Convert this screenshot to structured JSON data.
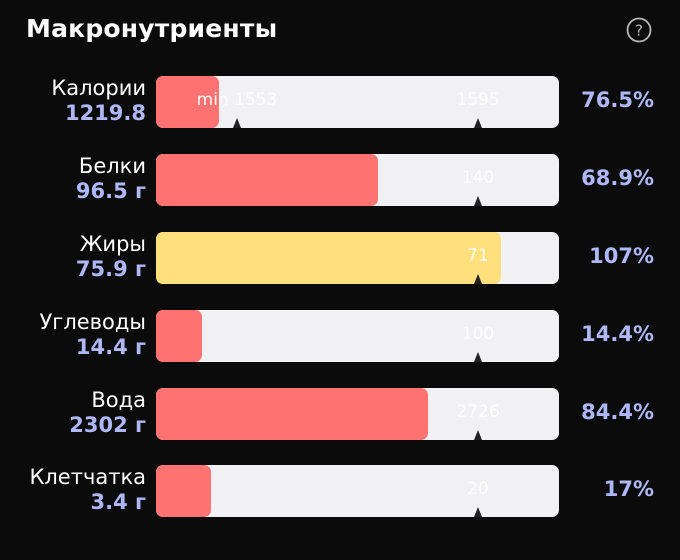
{
  "header": {
    "title": "Макронутриенты",
    "help_icon": "question-circle-icon",
    "help_glyph": "?"
  },
  "colors": {
    "background": "#0b0b0b",
    "track": "#f1f1f3",
    "fill_red": "#ff7272",
    "fill_yellow": "#ffe07c",
    "value_text": "#aeb8f6"
  },
  "nutrients": [
    {
      "label": "Калории",
      "value": "1219.8",
      "percent": "76.5%",
      "fill_fraction": 0.157,
      "color": "#ff7272",
      "markers": [
        {
          "text": "min 1553",
          "fraction": 0.2
        },
        {
          "text": "1595",
          "fraction": 0.8
        }
      ]
    },
    {
      "label": "Белки",
      "value": "96.5 г",
      "percent": "68.9%",
      "fill_fraction": 0.55,
      "color": "#ff7272",
      "markers": [
        {
          "text": "140",
          "fraction": 0.8
        }
      ]
    },
    {
      "label": "Жиры",
      "value": "75.9 г",
      "percent": "107%",
      "fill_fraction": 0.855,
      "color": "#ffe07c",
      "markers": [
        {
          "text": "71",
          "fraction": 0.8
        }
      ]
    },
    {
      "label": "Углеводы",
      "value": "14.4 г",
      "percent": "14.4%",
      "fill_fraction": 0.115,
      "color": "#ff7272",
      "markers": [
        {
          "text": "100",
          "fraction": 0.8
        }
      ]
    },
    {
      "label": "Вода",
      "value": "2302 г",
      "percent": "84.4%",
      "fill_fraction": 0.675,
      "color": "#ff7272",
      "markers": [
        {
          "text": "2726",
          "fraction": 0.8
        }
      ]
    },
    {
      "label": "Клетчатка",
      "value": "3.4 г",
      "percent": "17%",
      "fill_fraction": 0.136,
      "color": "#ff7272",
      "markers": [
        {
          "text": "20",
          "fraction": 0.8
        }
      ]
    }
  ]
}
